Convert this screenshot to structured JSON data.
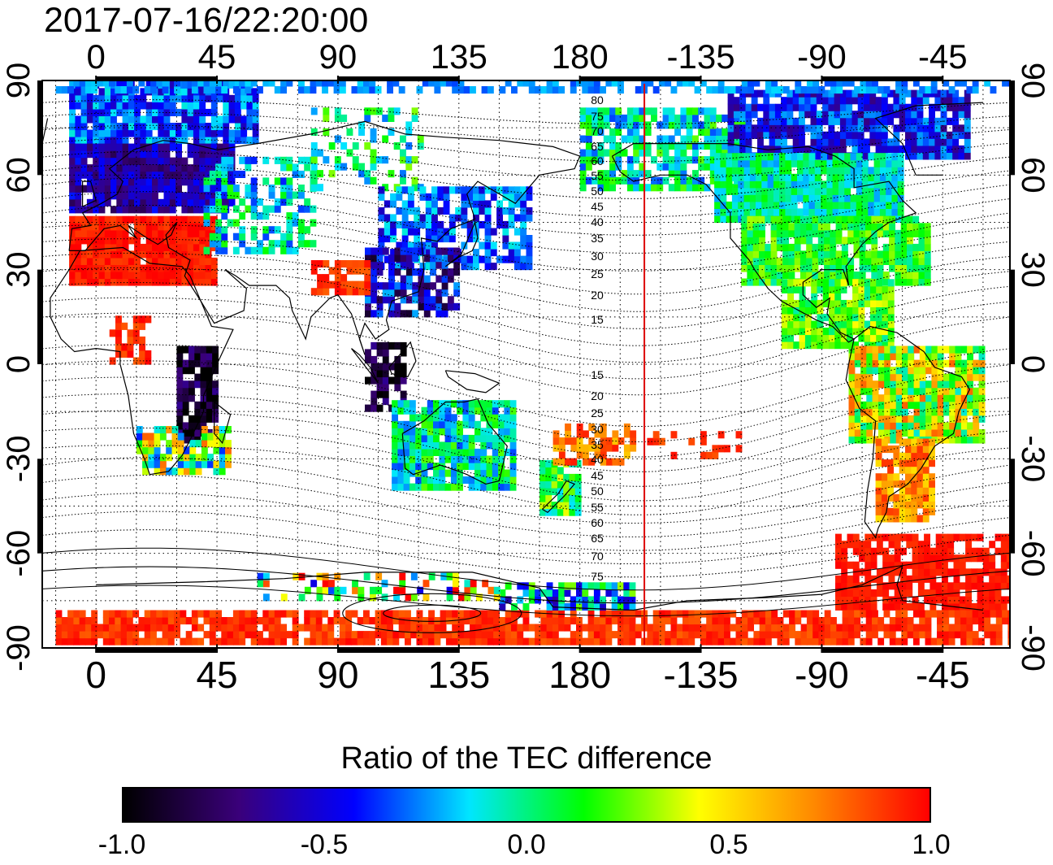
{
  "timestamp": "2017-07-16/22:20:00",
  "map": {
    "top_lon_labels": [
      "0",
      "45",
      "90",
      "135",
      "180",
      "-135",
      "-90",
      "-45"
    ],
    "bottom_lon_labels": [
      "0",
      "45",
      "90",
      "135",
      "180",
      "-135",
      "-90",
      "-45"
    ],
    "left_lat_labels": [
      "90",
      "60",
      "30",
      "0",
      "-30",
      "-60",
      "-90"
    ],
    "right_lat_labels": [
      "90",
      "60",
      "30",
      "0",
      "-30",
      "-60",
      "-90"
    ],
    "lon_range": [
      -20,
      340
    ],
    "lat_range": [
      -90,
      90
    ],
    "grid_lines": "dotted, every 15 degrees",
    "dip_latitude_labels_north": [
      "80",
      "75",
      "70",
      "65",
      "60",
      "55",
      "50",
      "45",
      "40",
      "35",
      "30",
      "25",
      "20",
      "15"
    ],
    "dip_latitude_labels_south": [
      "15",
      "20",
      "25",
      "30",
      "35",
      "40",
      "45",
      "50",
      "55",
      "60",
      "65",
      "70",
      "75"
    ],
    "terminator_marker_longitude": -156,
    "terminator_color": "#dd0000"
  },
  "colorbar": {
    "title": "Ratio of the TEC difference",
    "min": -1.0,
    "max": 1.0,
    "tick_labels": [
      "-1.0",
      "-0.5",
      "0.0",
      "0.5",
      "1.0"
    ],
    "tick_values": [
      -1.0,
      -0.5,
      0.0,
      0.5,
      1.0
    ],
    "colors": [
      "#000000",
      "#3a007a",
      "#0000ff",
      "#00e6ff",
      "#00ff00",
      "#ffff00",
      "#ff8800",
      "#ff0000"
    ]
  }
}
